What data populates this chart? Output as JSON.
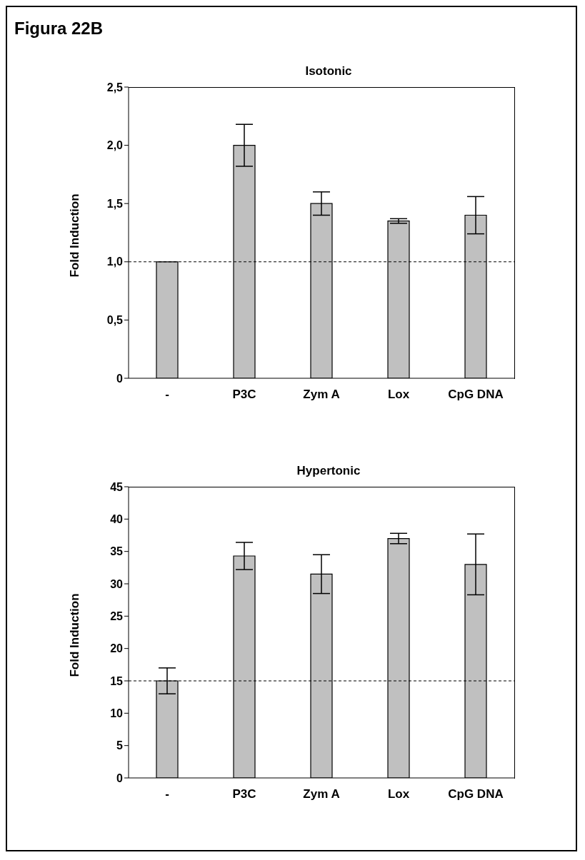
{
  "chart_data": [
    {
      "type": "bar",
      "title": "Isotonic",
      "ylabel": "Fold Induction",
      "annotations": [
        "Figura 22B"
      ],
      "categories": [
        "-",
        "P3C",
        "Zym A",
        "Lox",
        "CpG DNA"
      ],
      "values": [
        1.0,
        2.0,
        1.5,
        1.35,
        1.4
      ],
      "errors": [
        null,
        0.18,
        0.1,
        0.02,
        0.16
      ],
      "color": "#c0c0c0",
      "ylim": [
        0,
        2.5
      ],
      "yticks": [
        0,
        {
          "value": 0.5,
          "label": "0,5"
        },
        {
          "value": 1,
          "label": "1,0"
        },
        {
          "value": 1.5,
          "label": "1,5"
        },
        {
          "value": 2,
          "label": "2,0"
        },
        {
          "value": 2.5,
          "label": "2,5"
        }
      ],
      "ref_lines": [
        {
          "axis": "y",
          "value": 1.0,
          "label": null,
          "line_style": "dashed"
        }
      ],
      "grid": false,
      "legend": false
    },
    {
      "type": "bar",
      "title": "Hypertonic",
      "ylabel": "Fold Induction",
      "categories": [
        "-",
        "P3C",
        "Zym A",
        "Lox",
        "CpG DNA"
      ],
      "values": [
        15,
        34.3,
        31.5,
        37,
        33
      ],
      "errors": [
        2,
        2.1,
        3,
        0.8,
        4.7
      ],
      "color": "#c0c0c0",
      "ylim": [
        0,
        45
      ],
      "yticks": [
        0,
        5,
        10,
        15,
        20,
        25,
        30,
        35,
        40,
        45
      ],
      "ref_lines": [
        {
          "axis": "y",
          "value": 15,
          "label": null,
          "line_style": "dashed"
        }
      ],
      "grid": false,
      "legend": false
    }
  ]
}
